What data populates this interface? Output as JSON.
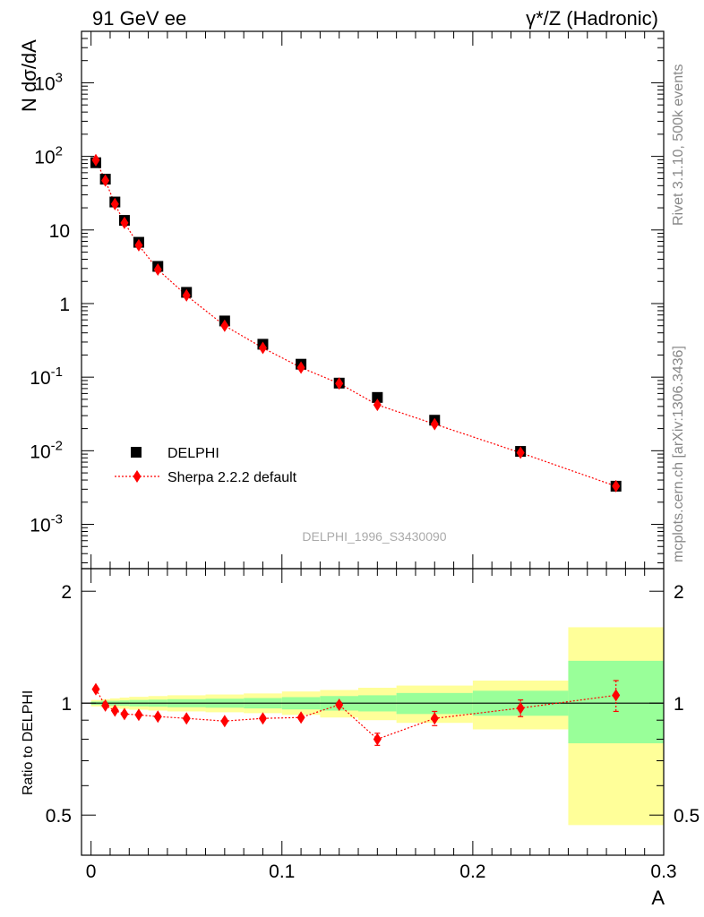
{
  "header": {
    "left": "91 GeV ee",
    "right": "γ*/Z (Hadronic)"
  },
  "side_labels": {
    "rivet": "Rivet 3.1.10,  500k events",
    "mcplots": "mcplots.cern.ch [arXiv:1306.3436]"
  },
  "watermark": "DELPHI_1996_S3430090",
  "colors": {
    "data": "#000000",
    "mc": "#ff0000",
    "band_inner": "#99ff99",
    "band_outer": "#ffff99"
  },
  "chart_data": [
    {
      "type": "scatter",
      "ylabel": "N dσ/dA",
      "yscale": "log",
      "ylim": [
        0.00025,
        5000
      ],
      "xlim": [
        -0.005,
        0.3
      ],
      "y_ticks": [
        {
          "label_base": "10",
          "label_exp": "-3",
          "value": 0.001
        },
        {
          "label_base": "10",
          "label_exp": "-2",
          "value": 0.01
        },
        {
          "label_base": "10",
          "label_exp": "-1",
          "value": 0.1
        },
        {
          "label_base": "1",
          "label_exp": "",
          "value": 1
        },
        {
          "label_base": "10",
          "label_exp": "",
          "value": 10
        },
        {
          "label_base": "10",
          "label_exp": "2",
          "value": 100
        },
        {
          "label_base": "10",
          "label_exp": "3",
          "value": 1000
        }
      ],
      "legend_position": "bottom-left",
      "series": [
        {
          "name": "DELPHI",
          "marker": "square",
          "x": [
            0.0025,
            0.0075,
            0.0125,
            0.0175,
            0.025,
            0.035,
            0.05,
            0.07,
            0.09,
            0.11,
            0.13,
            0.15,
            0.18,
            0.225,
            0.275
          ],
          "y": [
            82,
            49,
            24,
            13.5,
            6.8,
            3.2,
            1.42,
            0.58,
            0.28,
            0.15,
            0.083,
            0.053,
            0.026,
            0.0098,
            0.0033
          ]
        },
        {
          "name": "Sherpa 2.2.2 default",
          "marker": "diamond",
          "x": [
            0.0025,
            0.0075,
            0.0125,
            0.0175,
            0.025,
            0.035,
            0.05,
            0.07,
            0.09,
            0.11,
            0.13,
            0.15,
            0.18,
            0.225,
            0.275
          ],
          "y": [
            89,
            47,
            22.5,
            12.5,
            6.2,
            2.9,
            1.29,
            0.5,
            0.25,
            0.135,
            0.082,
            0.042,
            0.023,
            0.0094,
            0.0033
          ]
        }
      ]
    },
    {
      "type": "scatter",
      "ylabel": "Ratio to DELPHI",
      "xlabel": "A",
      "xlim": [
        -0.005,
        0.3
      ],
      "ylim": [
        0.39,
        2.3
      ],
      "y_ticks": [
        "0.5",
        "1",
        "2"
      ],
      "y_tick_values": [
        0.5,
        1,
        2
      ],
      "x_ticks": [
        "0",
        "0.1",
        "0.2",
        "0.3"
      ],
      "x_tick_values": [
        0,
        0.1,
        0.2,
        0.3
      ],
      "bands": [
        {
          "x0": 0.0,
          "x1": 0.005,
          "inner": [
            0.99,
            1.01
          ],
          "outer": [
            0.98,
            1.02
          ]
        },
        {
          "x0": 0.005,
          "x1": 0.01,
          "inner": [
            0.985,
            1.015
          ],
          "outer": [
            0.975,
            1.025
          ]
        },
        {
          "x0": 0.01,
          "x1": 0.015,
          "inner": [
            0.985,
            1.015
          ],
          "outer": [
            0.97,
            1.03
          ]
        },
        {
          "x0": 0.015,
          "x1": 0.02,
          "inner": [
            0.983,
            1.017
          ],
          "outer": [
            0.965,
            1.035
          ]
        },
        {
          "x0": 0.02,
          "x1": 0.03,
          "inner": [
            0.98,
            1.02
          ],
          "outer": [
            0.96,
            1.04
          ]
        },
        {
          "x0": 0.03,
          "x1": 0.04,
          "inner": [
            0.978,
            1.022
          ],
          "outer": [
            0.955,
            1.045
          ]
        },
        {
          "x0": 0.04,
          "x1": 0.06,
          "inner": [
            0.975,
            1.025
          ],
          "outer": [
            0.95,
            1.05
          ]
        },
        {
          "x0": 0.06,
          "x1": 0.08,
          "inner": [
            0.972,
            1.028
          ],
          "outer": [
            0.945,
            1.055
          ]
        },
        {
          "x0": 0.08,
          "x1": 0.1,
          "inner": [
            0.968,
            1.032
          ],
          "outer": [
            0.94,
            1.062
          ]
        },
        {
          "x0": 0.1,
          "x1": 0.12,
          "inner": [
            0.962,
            1.038
          ],
          "outer": [
            0.93,
            1.075
          ]
        },
        {
          "x0": 0.12,
          "x1": 0.14,
          "inner": [
            0.955,
            1.045
          ],
          "outer": [
            0.915,
            1.085
          ]
        },
        {
          "x0": 0.14,
          "x1": 0.16,
          "inner": [
            0.95,
            1.05
          ],
          "outer": [
            0.9,
            1.1
          ]
        },
        {
          "x0": 0.16,
          "x1": 0.2,
          "inner": [
            0.935,
            1.065
          ],
          "outer": [
            0.885,
            1.115
          ]
        },
        {
          "x0": 0.2,
          "x1": 0.25,
          "inner": [
            0.925,
            1.08
          ],
          "outer": [
            0.85,
            1.15
          ]
        },
        {
          "x0": 0.25,
          "x1": 0.3,
          "inner": [
            0.78,
            1.3
          ],
          "outer": [
            0.47,
            1.6
          ]
        }
      ],
      "series": [
        {
          "name": "Sherpa 2.2.2 default",
          "x": [
            0.0025,
            0.0075,
            0.0125,
            0.0175,
            0.025,
            0.035,
            0.05,
            0.07,
            0.09,
            0.11,
            0.13,
            0.15,
            0.18,
            0.225,
            0.275
          ],
          "y": [
            1.09,
            0.985,
            0.955,
            0.935,
            0.93,
            0.92,
            0.91,
            0.895,
            0.91,
            0.915,
            0.99,
            0.8,
            0.91,
            0.97,
            1.05
          ],
          "err": [
            0,
            0,
            0,
            0,
            0,
            0,
            0,
            0,
            0.01,
            0.01,
            0.015,
            0.03,
            0.04,
            0.05,
            0.1
          ]
        }
      ]
    }
  ]
}
